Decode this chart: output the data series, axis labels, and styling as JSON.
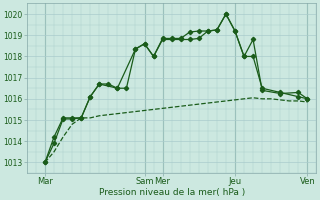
{
  "xlabel": "Pression niveau de la mer( hPa )",
  "bg_color": "#cce8e0",
  "grid_color": "#aacccc",
  "line_color": "#1a5c1a",
  "ylim": [
    1012.5,
    1020.5
  ],
  "yticks": [
    1013,
    1014,
    1015,
    1016,
    1017,
    1018,
    1019,
    1020
  ],
  "xlim": [
    0,
    16
  ],
  "day_labels": [
    "Mar",
    "Sam",
    "Mer",
    "Jeu",
    "Ven"
  ],
  "day_positions": [
    1,
    6.5,
    7.5,
    11.5,
    15.5
  ],
  "series0": {
    "x": [
      1,
      1.5,
      2,
      2.5,
      3,
      3.5,
      4,
      4.5,
      5,
      5.5,
      6,
      6.5,
      7,
      7.5,
      8,
      8.5,
      9,
      9.5,
      10,
      10.5,
      11,
      11.5,
      12,
      12.5,
      13,
      13.5,
      14,
      14.5,
      15,
      15.5
    ],
    "y": [
      1013.0,
      1013.5,
      1014.2,
      1014.8,
      1015.1,
      1015.1,
      1015.2,
      1015.25,
      1015.3,
      1015.35,
      1015.4,
      1015.45,
      1015.5,
      1015.55,
      1015.6,
      1015.65,
      1015.7,
      1015.75,
      1015.8,
      1015.85,
      1015.9,
      1015.95,
      1016.0,
      1016.05,
      1016.0,
      1016.0,
      1015.95,
      1015.9,
      1015.9,
      1015.85
    ]
  },
  "series1": {
    "x": [
      1,
      1.5,
      2,
      2.5,
      3,
      3.5,
      4,
      5,
      6,
      6.5,
      7,
      7.5,
      8,
      8.5,
      9,
      9.5,
      10,
      10.5,
      11,
      11.5,
      12,
      12.5,
      13,
      14,
      15,
      15.5
    ],
    "y": [
      1013.0,
      1014.2,
      1015.1,
      1015.1,
      1015.1,
      1016.1,
      1016.7,
      1016.5,
      1018.35,
      1018.6,
      1018.0,
      1018.8,
      1018.8,
      1018.8,
      1018.8,
      1018.85,
      1019.2,
      1019.25,
      1020.0,
      1019.2,
      1018.0,
      1018.0,
      1016.5,
      1016.3,
      1016.1,
      1016.0
    ]
  },
  "series2": {
    "x": [
      1,
      1.5,
      2,
      2.5,
      3,
      3.5,
      4,
      4.5,
      5,
      5.5,
      6,
      6.5,
      7,
      7.5,
      8,
      8.5,
      9,
      9.5,
      10,
      10.5,
      11,
      11.5,
      12,
      12.5,
      13,
      14,
      15,
      15.5
    ],
    "y": [
      1013.0,
      1013.9,
      1015.05,
      1015.05,
      1015.1,
      1016.1,
      1016.7,
      1016.7,
      1016.5,
      1016.5,
      1018.35,
      1018.6,
      1018.0,
      1018.85,
      1018.85,
      1018.85,
      1019.15,
      1019.2,
      1019.2,
      1019.25,
      1020.0,
      1019.2,
      1018.0,
      1018.8,
      1016.4,
      1016.25,
      1016.3,
      1016.0
    ]
  }
}
